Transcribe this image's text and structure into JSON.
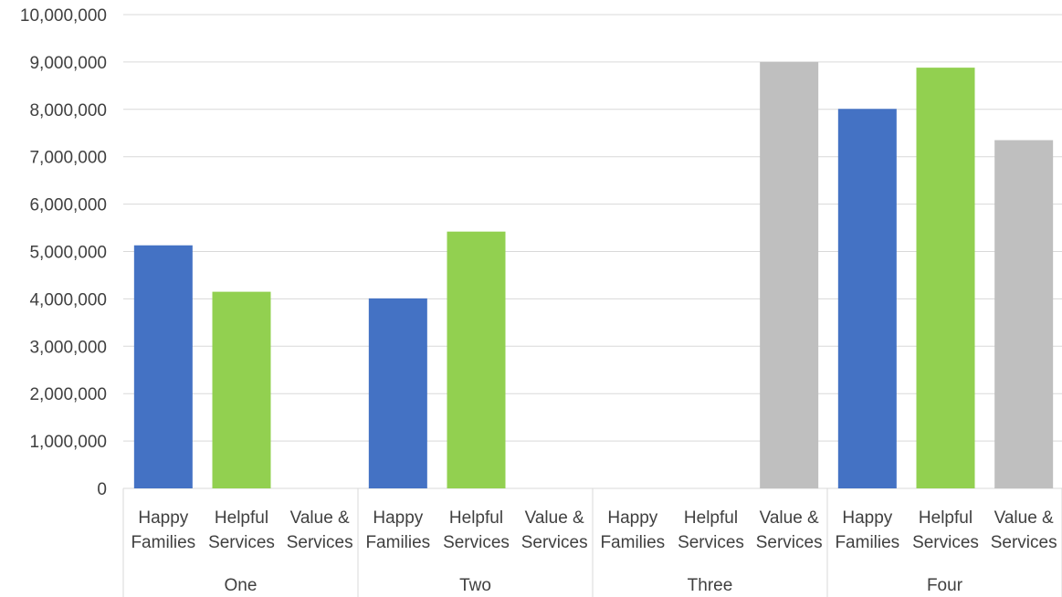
{
  "colors": {
    "Happy Families": "#4472c4",
    "Helpful Services": "#92d050",
    "Value & Services": "#bfbfbf",
    "grid": "#d9d9d9",
    "text": "#404040"
  },
  "chart_data": {
    "type": "bar",
    "title": "",
    "xlabel": "",
    "ylabel": "",
    "ylim": [
      0,
      10000000
    ],
    "yticks": [
      0,
      1000000,
      2000000,
      3000000,
      4000000,
      5000000,
      6000000,
      7000000,
      8000000,
      9000000,
      10000000
    ],
    "ytick_labels": [
      "0",
      "1,000,000",
      "2,000,000",
      "3,000,000",
      "4,000,000",
      "5,000,000",
      "6,000,000",
      "7,000,000",
      "8,000,000",
      "9,000,000",
      "10,000,000"
    ],
    "grid": true,
    "legend": "none",
    "sub_categories": [
      {
        "line1": "Happy",
        "line2": "Families",
        "key": "Happy Families"
      },
      {
        "line1": "Helpful",
        "line2": "Services",
        "key": "Helpful Services"
      },
      {
        "line1": "Value &",
        "line2": "Services",
        "key": "Value & Services"
      }
    ],
    "groups": [
      {
        "label": "One",
        "values": [
          5130000,
          4150000,
          null
        ]
      },
      {
        "label": "Two",
        "values": [
          4010000,
          5420000,
          null
        ]
      },
      {
        "label": "Three",
        "values": [
          null,
          null,
          9000000
        ]
      },
      {
        "label": "Four",
        "values": [
          8010000,
          8880000,
          7350000
        ]
      }
    ]
  }
}
